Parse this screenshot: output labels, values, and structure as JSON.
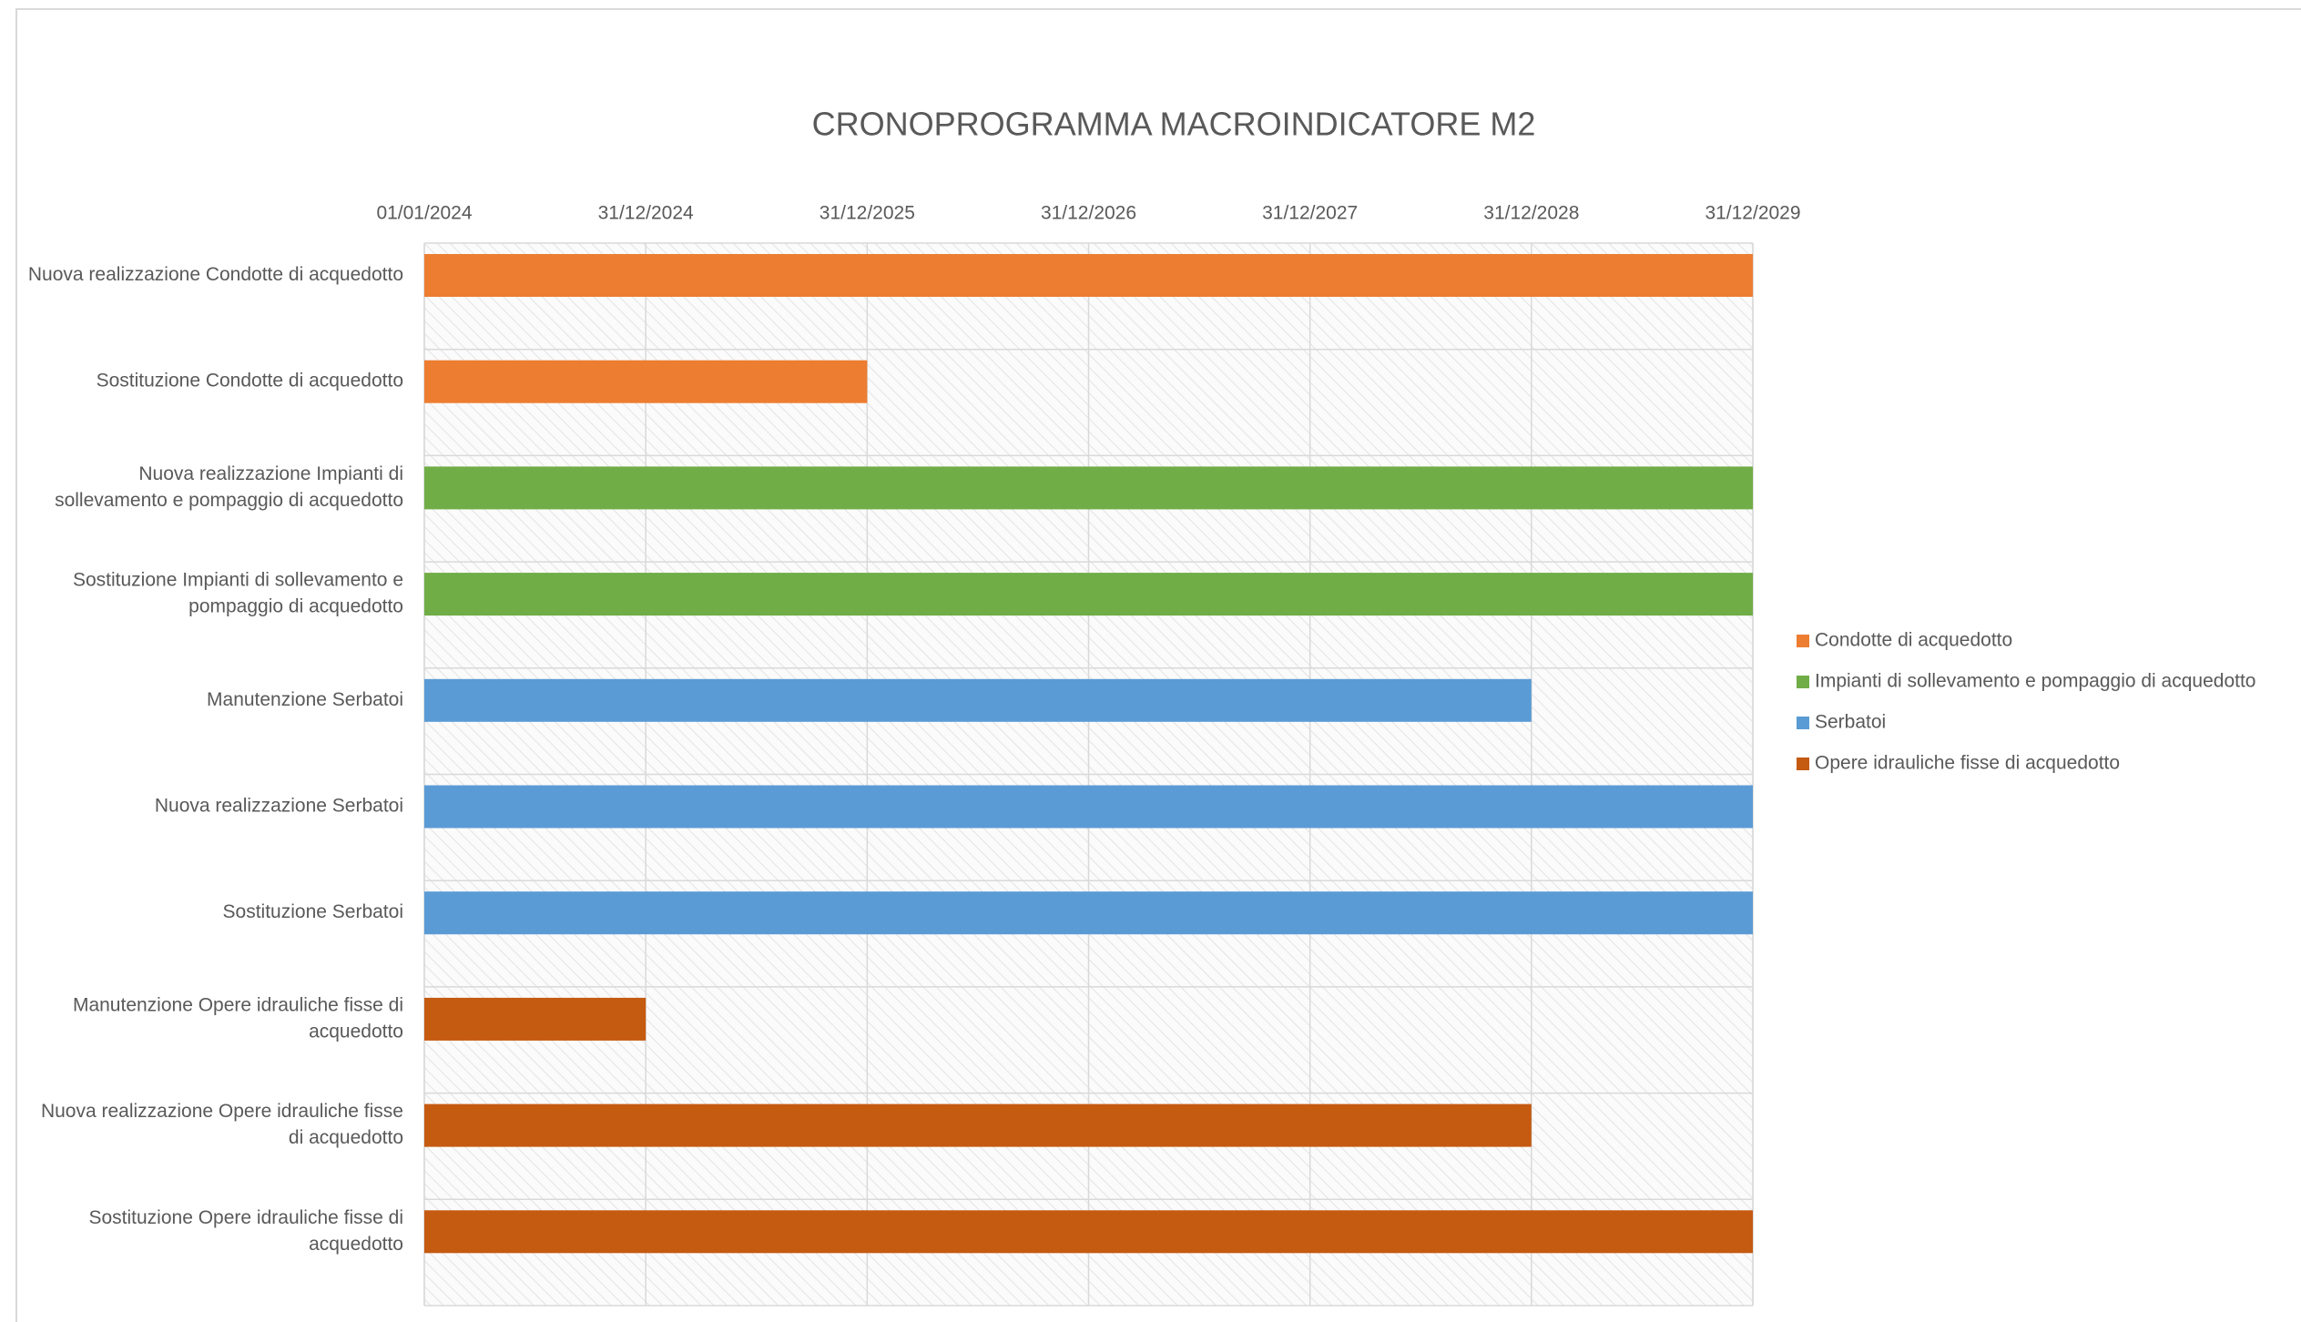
{
  "chart_data": {
    "type": "gantt",
    "title": "CRONOPROGRAMMA MACROINDICATORE M2",
    "categories": [
      "Nuova realizzazione Condotte di acquedotto",
      "Sostituzione Condotte di acquedotto",
      "Nuova realizzazione Impianti di sollevamento e pompaggio di acquedotto",
      "Sostituzione Impianti di sollevamento e pompaggio di acquedotto",
      "Manutenzione Serbatoi",
      "Nuova realizzazione Serbatoi",
      "Sostituzione Serbatoi",
      "Manutenzione Opere idrauliche fisse di acquedotto",
      "Nuova realizzazione Opere idrauliche fisse di acquedotto",
      "Sostituzione Opere idrauliche fisse di acquedotto"
    ],
    "series": [
      {
        "name": "Condotte di acquedotto",
        "color": "#ED7D31",
        "values": [
          6,
          2,
          null,
          null,
          null,
          null,
          null,
          null,
          null,
          null
        ]
      },
      {
        "name": "Impianti di sollevamento e pompaggio di acquedotto",
        "color": "#70AD47",
        "values": [
          null,
          null,
          6,
          6,
          null,
          null,
          null,
          null,
          null,
          null
        ]
      },
      {
        "name": "Serbatoi",
        "color": "#5B9BD5",
        "values": [
          null,
          null,
          null,
          null,
          5,
          6,
          6,
          null,
          null,
          null
        ]
      },
      {
        "name": "Opere idrauliche fisse di acquedotto",
        "color": "#C55A11",
        "values": [
          null,
          null,
          null,
          null,
          null,
          null,
          null,
          1,
          5,
          6
        ]
      }
    ],
    "xlim": [
      0,
      6
    ],
    "xticks": [
      {
        "value": 0,
        "label": "01/01/2024"
      },
      {
        "value": 1,
        "label": "31/12/2024"
      },
      {
        "value": 2,
        "label": "31/12/2025"
      },
      {
        "value": 3,
        "label": "31/12/2026"
      },
      {
        "value": 4,
        "label": "31/12/2027"
      },
      {
        "value": 5,
        "label": "31/12/2028"
      },
      {
        "value": 6,
        "label": "31/12/2029"
      }
    ],
    "grid": true,
    "legend": "right"
  }
}
